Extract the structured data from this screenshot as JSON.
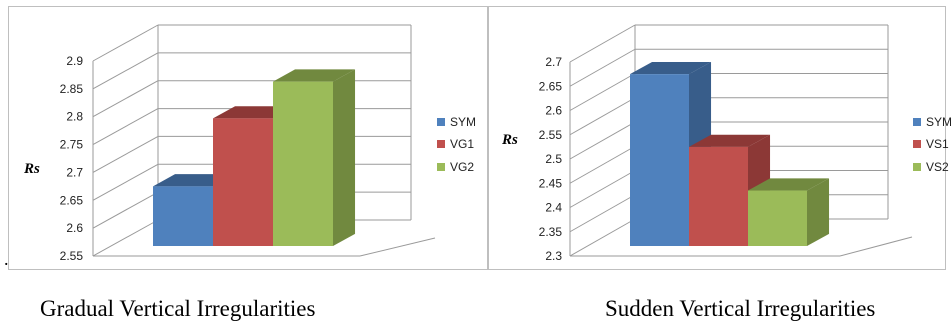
{
  "colors": {
    "series": [
      "#4f81bd",
      "#c0504d",
      "#9bbb59"
    ],
    "series_dark": [
      "#385d8a",
      "#8c3836",
      "#71893f"
    ],
    "grid": "#9a9a9a"
  },
  "marker": ".",
  "chart_data": [
    {
      "type": "bar",
      "style": "3d-clustered-column",
      "title": "",
      "caption": "Gradual Vertical Irregularities",
      "ylabel": "Rs",
      "xlabel": "",
      "ylim": [
        2.55,
        2.9
      ],
      "yticks": [
        "2.55",
        "2.6",
        "2.65",
        "2.7",
        "2.75",
        "2.8",
        "2.85",
        "2.9"
      ],
      "grid": true,
      "legend_position": "right",
      "series": [
        {
          "name": "SYM",
          "value": 2.675
        },
        {
          "name": "VG1",
          "value": 2.797
        },
        {
          "name": "VG2",
          "value": 2.863
        }
      ]
    },
    {
      "type": "bar",
      "style": "3d-clustered-column",
      "title": "",
      "caption": "Sudden Vertical Irregularities",
      "ylabel": "Rs",
      "xlabel": "",
      "ylim": [
        2.3,
        2.7
      ],
      "yticks": [
        "2.3",
        "2.35",
        "2.4",
        "2.45",
        "2.5",
        "2.55",
        "2.6",
        "2.65",
        "2.7"
      ],
      "grid": true,
      "legend_position": "right",
      "series": [
        {
          "name": "SYM",
          "value": 2.675
        },
        {
          "name": "VS1",
          "value": 2.525
        },
        {
          "name": "VS2",
          "value": 2.435
        }
      ]
    }
  ]
}
